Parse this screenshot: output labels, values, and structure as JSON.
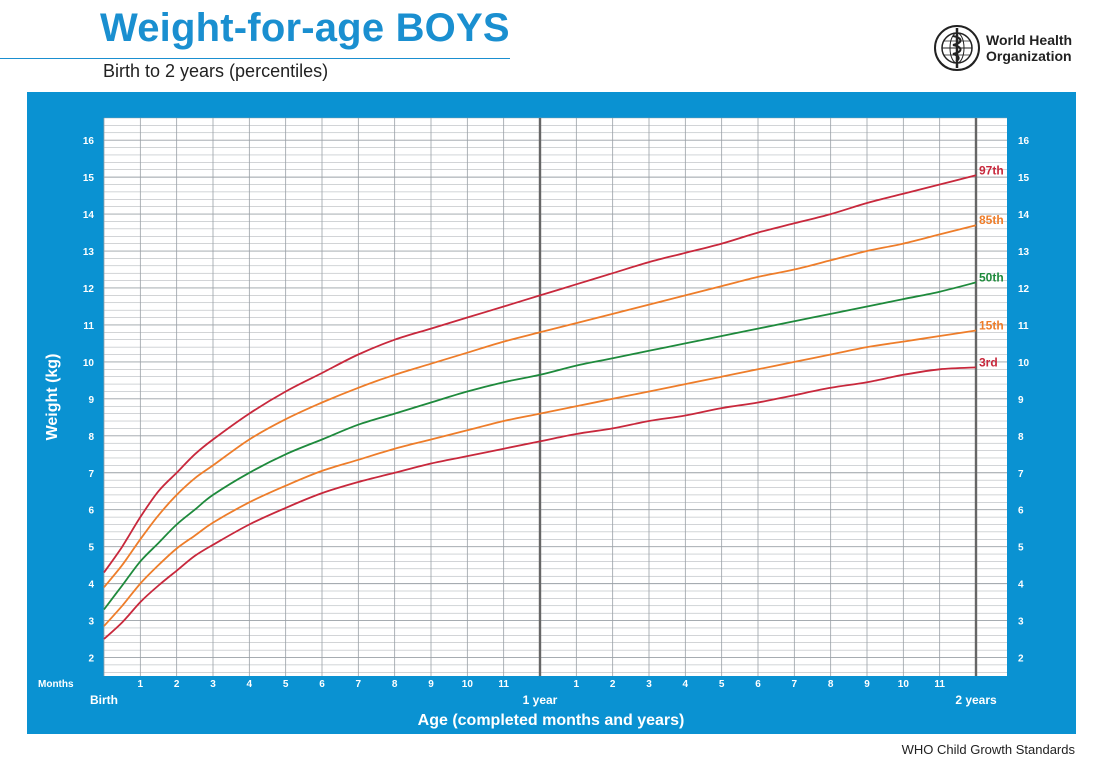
{
  "header": {
    "title": "Weight-for-age BOYS",
    "subtitle": "Birth to 2 years (percentiles)",
    "logo_line1": "World Health",
    "logo_line2": "Organization",
    "logo_icon": "who-emblem-icon"
  },
  "footer": {
    "text": "WHO Child Growth Standards"
  },
  "colors": {
    "panel": "#0a92d2",
    "grid": "#9aa0a6",
    "p97": "#c8283c",
    "p85": "#ee7d2a",
    "p50": "#1e8a3c",
    "p15": "#ee7d2a",
    "p3": "#c8283c"
  },
  "chart_data": {
    "type": "line",
    "title": "Weight-for-age BOYS",
    "subtitle": "Birth to 2 years (percentiles)",
    "xlabel": "Age (completed months and years)",
    "ylabel": "Weight (kg)",
    "x_unit_label": "Months",
    "xlim": [
      0,
      24
    ],
    "ylim": [
      1.5,
      16.6
    ],
    "grid": true,
    "legend": "end-of-line labels (right)",
    "y_ticks": [
      2,
      3,
      4,
      5,
      6,
      7,
      8,
      9,
      10,
      11,
      12,
      13,
      14,
      15,
      16
    ],
    "x_month_labels": [
      "1",
      "2",
      "3",
      "4",
      "5",
      "6",
      "7",
      "8",
      "9",
      "10",
      "11",
      "",
      "1",
      "2",
      "3",
      "4",
      "5",
      "6",
      "7",
      "8",
      "9",
      "10",
      "11"
    ],
    "x_major_labels": [
      {
        "x": 0,
        "label": "Birth"
      },
      {
        "x": 12,
        "label": "1 year"
      },
      {
        "x": 24,
        "label": "2 years"
      }
    ],
    "x": [
      0,
      0.5,
      1,
      1.5,
      2,
      2.5,
      3,
      4,
      5,
      6,
      7,
      8,
      9,
      10,
      11,
      12,
      13,
      14,
      15,
      16,
      17,
      18,
      19,
      20,
      21,
      22,
      23,
      24
    ],
    "series": [
      {
        "name": "97th",
        "color": "#c8283c",
        "values": [
          4.3,
          5.0,
          5.8,
          6.5,
          7.0,
          7.5,
          7.9,
          8.6,
          9.2,
          9.7,
          10.2,
          10.6,
          10.9,
          11.2,
          11.5,
          11.8,
          12.1,
          12.4,
          12.7,
          12.95,
          13.2,
          13.5,
          13.75,
          14.0,
          14.3,
          14.55,
          14.8,
          15.05
        ]
      },
      {
        "name": "85th",
        "color": "#ee7d2a",
        "values": [
          3.9,
          4.5,
          5.2,
          5.85,
          6.4,
          6.85,
          7.2,
          7.9,
          8.45,
          8.9,
          9.3,
          9.65,
          9.95,
          10.25,
          10.55,
          10.8,
          11.05,
          11.3,
          11.55,
          11.8,
          12.05,
          12.3,
          12.5,
          12.75,
          13.0,
          13.2,
          13.45,
          13.7
        ]
      },
      {
        "name": "50th",
        "color": "#1e8a3c",
        "values": [
          3.3,
          3.95,
          4.6,
          5.1,
          5.6,
          6.0,
          6.4,
          7.0,
          7.5,
          7.9,
          8.3,
          8.6,
          8.9,
          9.2,
          9.45,
          9.65,
          9.9,
          10.1,
          10.3,
          10.5,
          10.7,
          10.9,
          11.1,
          11.3,
          11.5,
          11.7,
          11.9,
          12.15
        ]
      },
      {
        "name": "15th",
        "color": "#ee7d2a",
        "values": [
          2.85,
          3.4,
          4.0,
          4.5,
          4.95,
          5.3,
          5.65,
          6.2,
          6.65,
          7.05,
          7.35,
          7.65,
          7.9,
          8.15,
          8.4,
          8.6,
          8.8,
          9.0,
          9.2,
          9.4,
          9.6,
          9.8,
          10.0,
          10.2,
          10.4,
          10.55,
          10.7,
          10.85
        ]
      },
      {
        "name": "3rd",
        "color": "#c8283c",
        "values": [
          2.5,
          2.95,
          3.5,
          3.95,
          4.35,
          4.75,
          5.05,
          5.6,
          6.05,
          6.45,
          6.75,
          7.0,
          7.25,
          7.45,
          7.65,
          7.85,
          8.05,
          8.2,
          8.4,
          8.55,
          8.75,
          8.9,
          9.1,
          9.3,
          9.45,
          9.65,
          9.8,
          9.85
        ]
      }
    ]
  }
}
